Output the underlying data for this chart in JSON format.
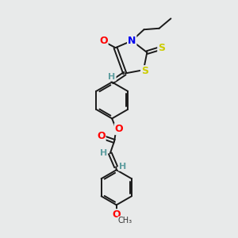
{
  "background_color": "#e8eaea",
  "bond_color": "#1a1a1a",
  "atom_colors": {
    "O": "#ff0000",
    "N": "#0000ee",
    "S": "#cccc00",
    "C": "#000000",
    "H": "#5f9ea0"
  },
  "figsize": [
    3.0,
    3.0
  ],
  "dpi": 100,
  "xlim": [
    0,
    10
  ],
  "ylim": [
    0,
    10
  ]
}
